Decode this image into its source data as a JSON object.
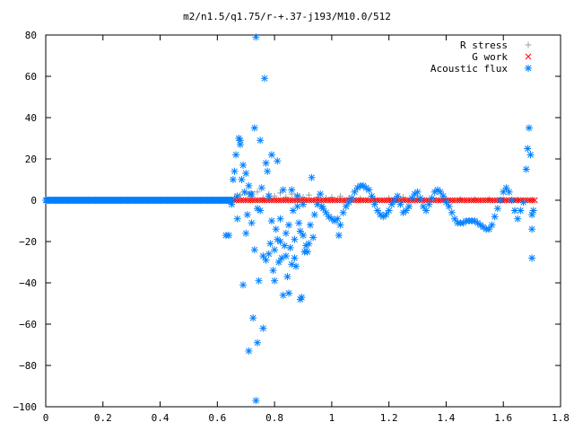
{
  "chart_data": {
    "type": "scatter",
    "title": "m2/n1.5/q1.75/r-+.37-j193/M10.0/512",
    "xlabel": "",
    "ylabel": "",
    "xlim": [
      0,
      1.8
    ],
    "ylim": [
      -100,
      80
    ],
    "xticks": [
      "0",
      "0.2",
      "0.4",
      "0.6",
      "0.8",
      "1",
      "1.2",
      "1.4",
      "1.6",
      "1.8"
    ],
    "yticks": [
      "80",
      "60",
      "40",
      "20",
      "0",
      "−20",
      "−40",
      "−60",
      "−80",
      "−100"
    ],
    "grid": false,
    "legend_position": "top-right",
    "series": [
      {
        "name": "R stress",
        "marker": "+",
        "color": "#a0a0a0",
        "points": [
          [
            0.66,
            1.5
          ],
          [
            0.68,
            2.5
          ],
          [
            0.7,
            3.5
          ],
          [
            0.72,
            2.0
          ],
          [
            0.74,
            4.0
          ],
          [
            0.76,
            1.0
          ],
          [
            0.78,
            3.0
          ],
          [
            0.8,
            2.0
          ],
          [
            0.82,
            3.5
          ],
          [
            0.84,
            1.5
          ],
          [
            0.86,
            3.0
          ],
          [
            0.88,
            2.5
          ],
          [
            0.9,
            1.5
          ],
          [
            0.92,
            2.5
          ],
          [
            0.95,
            1.5
          ],
          [
            0.98,
            1.0
          ],
          [
            1.0,
            1.5
          ],
          [
            1.03,
            2.0
          ],
          [
            1.06,
            1.0
          ],
          [
            1.1,
            0.8
          ],
          [
            1.15,
            0.5
          ],
          [
            1.2,
            1.0
          ],
          [
            1.25,
            1.5
          ],
          [
            1.3,
            1.0
          ],
          [
            1.35,
            1.0
          ],
          [
            1.4,
            0.5
          ],
          [
            1.45,
            0.5
          ],
          [
            1.5,
            0.3
          ],
          [
            1.55,
            0.5
          ],
          [
            1.6,
            0.3
          ],
          [
            1.65,
            0.2
          ],
          [
            1.7,
            0.2
          ]
        ]
      },
      {
        "name": "G work",
        "marker": "x",
        "color": "#ff0000",
        "x_range": [
          0.65,
          1.71
        ],
        "n_points": 130,
        "y_value": 0
      },
      {
        "name": "Acoustic flux",
        "marker": "*",
        "color": "#0080ff",
        "flat_segment": {
          "x_range": [
            0.0,
            0.65
          ],
          "y_value": 0,
          "n_points": 180
        },
        "points": [
          [
            0.63,
            -17
          ],
          [
            0.64,
            -17
          ],
          [
            0.65,
            -2
          ],
          [
            0.655,
            10
          ],
          [
            0.66,
            14
          ],
          [
            0.67,
            2
          ],
          [
            0.665,
            22
          ],
          [
            0.67,
            -9
          ],
          [
            0.675,
            30
          ],
          [
            0.68,
            29
          ],
          [
            0.68,
            27
          ],
          [
            0.685,
            10
          ],
          [
            0.69,
            -41
          ],
          [
            0.69,
            17
          ],
          [
            0.695,
            4
          ],
          [
            0.7,
            13
          ],
          [
            0.7,
            -16
          ],
          [
            0.705,
            -7
          ],
          [
            0.71,
            -73
          ],
          [
            0.71,
            7
          ],
          [
            0.715,
            3
          ],
          [
            0.72,
            3
          ],
          [
            0.72,
            -11
          ],
          [
            0.725,
            -57
          ],
          [
            0.73,
            35
          ],
          [
            0.73,
            -24
          ],
          [
            0.735,
            79
          ],
          [
            0.735,
            -97
          ],
          [
            0.74,
            -69
          ],
          [
            0.74,
            -4
          ],
          [
            0.745,
            -39
          ],
          [
            0.75,
            29
          ],
          [
            0.75,
            -5
          ],
          [
            0.755,
            6
          ],
          [
            0.76,
            -62
          ],
          [
            0.76,
            -27
          ],
          [
            0.765,
            59
          ],
          [
            0.77,
            -29
          ],
          [
            0.77,
            18
          ],
          [
            0.775,
            14
          ],
          [
            0.78,
            -26
          ],
          [
            0.78,
            2
          ],
          [
            0.785,
            -21
          ],
          [
            0.79,
            22
          ],
          [
            0.79,
            -10
          ],
          [
            0.795,
            -34
          ],
          [
            0.8,
            -39
          ],
          [
            0.8,
            -24
          ],
          [
            0.805,
            -14
          ],
          [
            0.81,
            19
          ],
          [
            0.81,
            -19
          ],
          [
            0.815,
            -30
          ],
          [
            0.82,
            -9
          ],
          [
            0.82,
            -20
          ],
          [
            0.825,
            -28
          ],
          [
            0.83,
            -46
          ],
          [
            0.83,
            5
          ],
          [
            0.835,
            -22
          ],
          [
            0.84,
            -16
          ],
          [
            0.84,
            -27
          ],
          [
            0.845,
            -37
          ],
          [
            0.85,
            -12
          ],
          [
            0.85,
            -45
          ],
          [
            0.855,
            -23
          ],
          [
            0.86,
            -31
          ],
          [
            0.86,
            5
          ],
          [
            0.865,
            -5
          ],
          [
            0.87,
            -19
          ],
          [
            0.87,
            -28
          ],
          [
            0.875,
            -32
          ],
          [
            0.88,
            2
          ],
          [
            0.88,
            -3
          ],
          [
            0.885,
            -11
          ],
          [
            0.89,
            -15
          ],
          [
            0.89,
            -48
          ],
          [
            0.895,
            -47
          ],
          [
            0.9,
            -2
          ],
          [
            0.9,
            -17
          ],
          [
            0.905,
            -25
          ],
          [
            0.91,
            -22
          ],
          [
            0.915,
            -25
          ],
          [
            0.92,
            -21
          ],
          [
            0.925,
            -12
          ],
          [
            0.93,
            11
          ],
          [
            0.935,
            -18
          ],
          [
            0.94,
            -7
          ],
          [
            0.95,
            -2
          ],
          [
            0.96,
            3
          ],
          [
            0.965,
            -3
          ],
          [
            0.97,
            -4
          ],
          [
            0.98,
            -6
          ],
          [
            0.99,
            -8
          ],
          [
            1.0,
            -9
          ],
          [
            1.01,
            -10
          ],
          [
            1.02,
            -9
          ],
          [
            1.025,
            -17
          ],
          [
            1.03,
            -12
          ],
          [
            1.04,
            -6
          ],
          [
            1.05,
            -3
          ],
          [
            1.06,
            -1
          ],
          [
            1.07,
            1
          ],
          [
            1.08,
            4
          ],
          [
            1.09,
            6
          ],
          [
            1.1,
            7
          ],
          [
            1.11,
            7
          ],
          [
            1.12,
            6
          ],
          [
            1.13,
            5
          ],
          [
            1.14,
            2
          ],
          [
            1.15,
            -2
          ],
          [
            1.16,
            -5
          ],
          [
            1.17,
            -7
          ],
          [
            1.18,
            -8
          ],
          [
            1.19,
            -7
          ],
          [
            1.2,
            -5
          ],
          [
            1.21,
            -2
          ],
          [
            1.22,
            0
          ],
          [
            1.23,
            2
          ],
          [
            1.24,
            -2
          ],
          [
            1.25,
            -6
          ],
          [
            1.26,
            -5
          ],
          [
            1.27,
            -3
          ],
          [
            1.28,
            1
          ],
          [
            1.29,
            3
          ],
          [
            1.3,
            4
          ],
          [
            1.31,
            1
          ],
          [
            1.32,
            -3
          ],
          [
            1.33,
            -5
          ],
          [
            1.34,
            -2
          ],
          [
            1.35,
            1
          ],
          [
            1.36,
            4
          ],
          [
            1.37,
            5
          ],
          [
            1.38,
            4
          ],
          [
            1.39,
            2
          ],
          [
            1.4,
            -1
          ],
          [
            1.41,
            -3
          ],
          [
            1.42,
            -6
          ],
          [
            1.43,
            -9
          ],
          [
            1.44,
            -11
          ],
          [
            1.45,
            -11
          ],
          [
            1.46,
            -11
          ],
          [
            1.47,
            -10
          ],
          [
            1.48,
            -10
          ],
          [
            1.49,
            -10
          ],
          [
            1.5,
            -10
          ],
          [
            1.51,
            -11
          ],
          [
            1.52,
            -12
          ],
          [
            1.53,
            -13
          ],
          [
            1.54,
            -14
          ],
          [
            1.55,
            -14
          ],
          [
            1.56,
            -12
          ],
          [
            1.57,
            -8
          ],
          [
            1.58,
            -4
          ],
          [
            1.59,
            0
          ],
          [
            1.6,
            4
          ],
          [
            1.61,
            6
          ],
          [
            1.62,
            4
          ],
          [
            1.63,
            0
          ],
          [
            1.64,
            -5
          ],
          [
            1.65,
            -9
          ],
          [
            1.66,
            -5
          ],
          [
            1.67,
            -1
          ],
          [
            1.68,
            15
          ],
          [
            1.685,
            25
          ],
          [
            1.69,
            35
          ],
          [
            1.695,
            22
          ],
          [
            1.7,
            -7
          ],
          [
            1.7,
            -14
          ],
          [
            1.7,
            -28
          ],
          [
            1.705,
            -5
          ]
        ]
      }
    ]
  }
}
